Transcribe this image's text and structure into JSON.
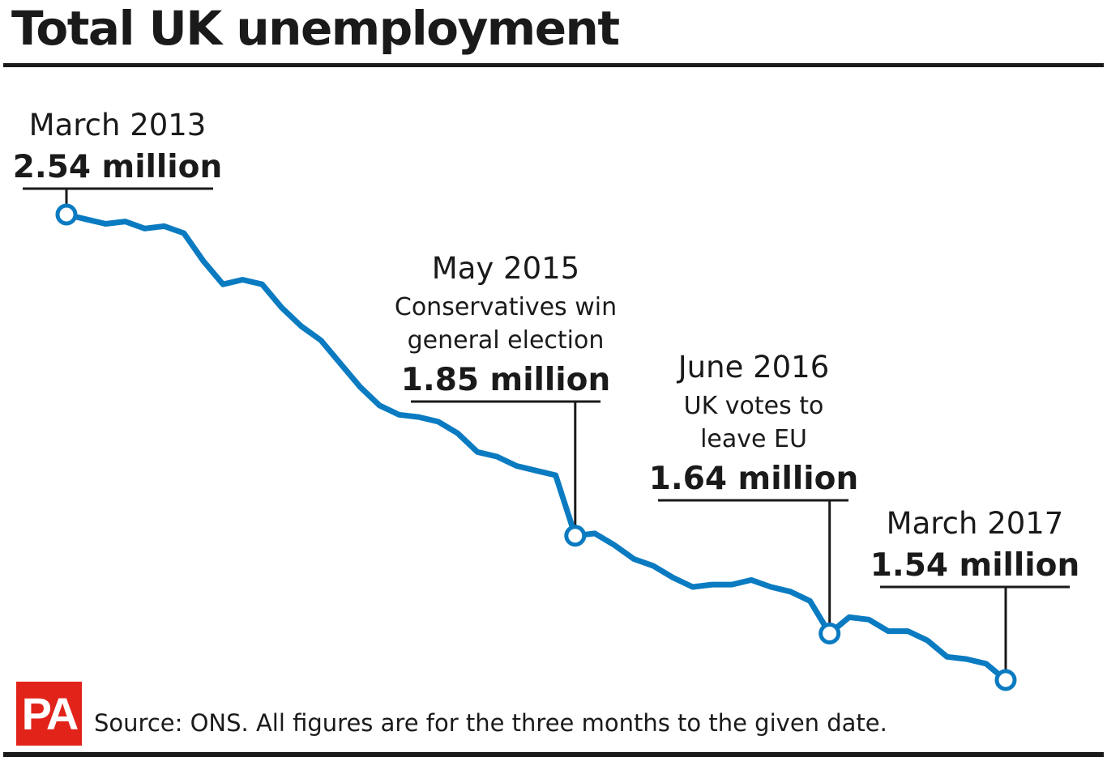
{
  "title": "Total UK unemployment",
  "source": "Source: ONS. All figures are for the three months to the given date.",
  "logo": "PA",
  "colors": {
    "line": "#0a7bc1",
    "text": "#1a1a1a",
    "logo_bg": "#e2231a",
    "background": "#ffffff"
  },
  "chart_data": {
    "type": "line",
    "title": "Total UK unemployment",
    "xlabel": "",
    "ylabel": "",
    "units": "million",
    "grid": false,
    "legend": "none",
    "xlim": [
      "2013-03",
      "2017-03"
    ],
    "ylim": [
      1.5,
      2.6
    ],
    "series": [
      {
        "x": [
          "2013-03",
          "2013-04",
          "2013-05",
          "2013-06",
          "2013-07",
          "2013-08",
          "2013-09",
          "2013-10",
          "2013-11",
          "2013-12",
          "2014-01",
          "2014-02",
          "2014-03",
          "2014-04",
          "2014-05",
          "2014-06",
          "2014-07",
          "2014-08",
          "2014-09",
          "2014-10",
          "2014-11",
          "2014-12",
          "2015-01",
          "2015-02",
          "2015-03",
          "2015-04",
          "2015-05",
          "2015-06",
          "2015-07",
          "2015-08",
          "2015-09",
          "2015-10",
          "2015-11",
          "2015-12",
          "2016-01",
          "2016-02",
          "2016-03",
          "2016-04",
          "2016-05",
          "2016-06",
          "2016-07",
          "2016-08",
          "2016-09",
          "2016-10",
          "2016-11",
          "2016-12",
          "2017-01",
          "2017-02",
          "2017-03"
        ],
        "values": [
          2.54,
          2.53,
          2.52,
          2.525,
          2.51,
          2.515,
          2.5,
          2.44,
          2.39,
          2.4,
          2.39,
          2.34,
          2.3,
          2.27,
          2.22,
          2.17,
          2.13,
          2.11,
          2.105,
          2.095,
          2.07,
          2.03,
          2.02,
          2.0,
          1.99,
          1.98,
          1.85,
          1.855,
          1.83,
          1.8,
          1.785,
          1.76,
          1.74,
          1.745,
          1.745,
          1.755,
          1.74,
          1.73,
          1.71,
          1.64,
          1.675,
          1.67,
          1.645,
          1.645,
          1.625,
          1.59,
          1.585,
          1.575,
          1.54
        ]
      }
    ],
    "annotations": [
      {
        "x": "2013-03",
        "y": 2.54,
        "date": "March 2013",
        "note": [],
        "value": "2.54 million"
      },
      {
        "x": "2015-05",
        "y": 1.85,
        "date": "May 2015",
        "note": [
          "Conservatives win",
          "general election"
        ],
        "value": "1.85 million"
      },
      {
        "x": "2016-06",
        "y": 1.64,
        "date": "June 2016",
        "note": [
          "UK votes to",
          "leave EU"
        ],
        "value": "1.64 million"
      },
      {
        "x": "2017-03",
        "y": 1.54,
        "date": "March 2017",
        "note": [],
        "value": "1.54 million"
      }
    ]
  }
}
